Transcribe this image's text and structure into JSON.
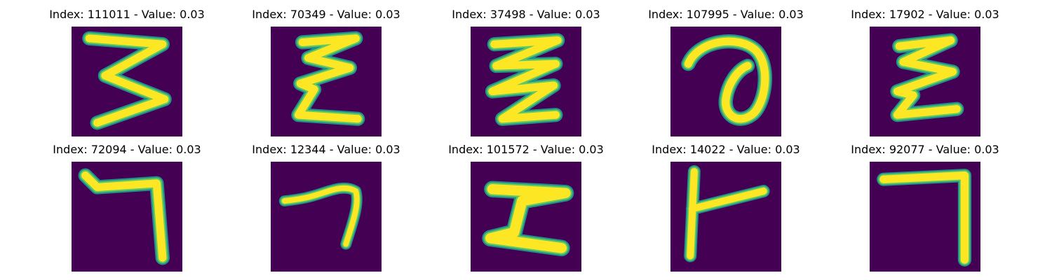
{
  "colors": {
    "background": "#440154",
    "stroke_edge": "#21918c",
    "stroke_mid": "#5ec962",
    "stroke_core": "#fde725"
  },
  "panels": [
    {
      "title": "Index: 111011 - Value: 0.03",
      "digit": "3-like zigzag",
      "icon": "glyph-zigzag-3"
    },
    {
      "title": "Index: 70349 - Value: 0.03",
      "digit": "epsilon-like zigzag",
      "icon": "glyph-zigzag-e"
    },
    {
      "title": "Index: 37498 - Value: 0.03",
      "digit": "double zigzag",
      "icon": "glyph-zigzag-w"
    },
    {
      "title": "Index: 107995 - Value: 0.03",
      "digit": "loop",
      "icon": "glyph-loop"
    },
    {
      "title": "Index: 17902 - Value: 0.03",
      "digit": "epsilon-like zigzag",
      "icon": "glyph-zigzag-e2"
    },
    {
      "title": "Index: 72094 - Value: 0.03",
      "digit": "hook",
      "icon": "glyph-hook"
    },
    {
      "title": "Index: 12344 - Value: 0.03",
      "digit": "small hook",
      "icon": "glyph-small-hook"
    },
    {
      "title": "Index: 101572 - Value: 0.03",
      "digit": "z-like",
      "icon": "glyph-z"
    },
    {
      "title": "Index: 14022 - Value: 0.03",
      "digit": "y-like",
      "icon": "glyph-y"
    },
    {
      "title": "Index: 92077 - Value: 0.03",
      "digit": "seven-like",
      "icon": "glyph-seven"
    }
  ]
}
